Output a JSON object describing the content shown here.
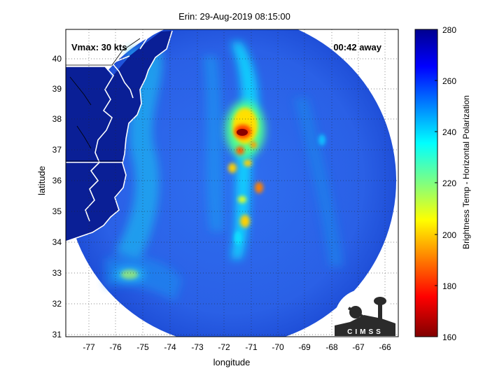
{
  "map": {
    "title": "Erin: 29-Aug-2019 08:15:00",
    "vmax_label": "Vmax: 30 kts",
    "time_away_label": "00:42 away",
    "xlabel": "longitude",
    "ylabel": "latitude",
    "x_ticks": [
      "-77",
      "-76",
      "-75",
      "-74",
      "-73",
      "-72",
      "-71",
      "-70",
      "-69",
      "-68",
      "-67",
      "-66"
    ],
    "y_ticks": [
      "40",
      "39",
      "38",
      "37",
      "36",
      "35",
      "34",
      "33",
      "32",
      "31"
    ],
    "grid": "dotted",
    "logo_text": "CIMSS"
  },
  "colorbar": {
    "label": "Brightness Temp - Horizontal Polarization",
    "ticks": [
      "280",
      "260",
      "240",
      "220",
      "200",
      "180",
      "160"
    ],
    "colormap": "jet-reversed"
  },
  "colors": {
    "background": "#ffffff",
    "swath_base": "#2a5ee8",
    "coast": "#ffffff",
    "land_dark": "#0a1a8a"
  }
}
